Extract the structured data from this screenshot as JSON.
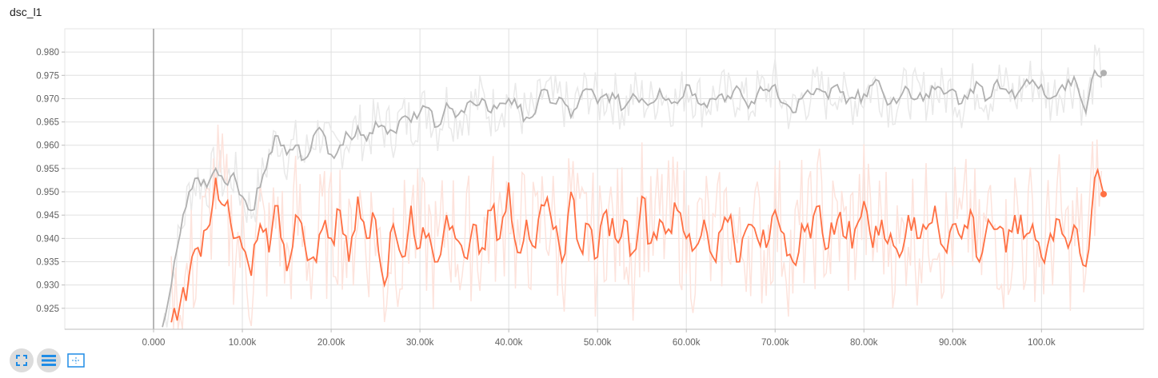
{
  "chart_data": {
    "type": "line",
    "title": "dsc_l1",
    "xlabel": "",
    "ylabel": "",
    "xlim": [
      -10000,
      111500
    ],
    "ylim": [
      0.9205,
      0.985
    ],
    "x_ticks": [
      0,
      10000,
      20000,
      30000,
      40000,
      50000,
      60000,
      70000,
      80000,
      90000,
      100000
    ],
    "x_tick_labels": [
      "0.000",
      "10.00k",
      "20.00k",
      "30.00k",
      "40.00k",
      "50.00k",
      "60.00k",
      "70.00k",
      "80.00k",
      "90.00k",
      "100.0k"
    ],
    "y_ticks": [
      0.925,
      0.93,
      0.935,
      0.94,
      0.945,
      0.95,
      0.955,
      0.96,
      0.965,
      0.97,
      0.975,
      0.98
    ],
    "y_tick_labels": [
      "0.925",
      "0.930",
      "0.935",
      "0.940",
      "0.945",
      "0.950",
      "0.955",
      "0.960",
      "0.965",
      "0.970",
      "0.975",
      "0.980"
    ],
    "grid": true,
    "legend": "none",
    "series": [
      {
        "color": "#b0b0b0",
        "raw_color": "#e9e9e9",
        "x": [
          1000,
          2000,
          3000,
          4000,
          5000,
          6000,
          7000,
          8000,
          9000,
          10000,
          11000,
          12000,
          13000,
          14000,
          15000,
          16000,
          17000,
          18000,
          19000,
          20000,
          21000,
          22000,
          23000,
          24000,
          25000,
          26000,
          27000,
          28000,
          29000,
          30000,
          31000,
          32000,
          33000,
          34000,
          35000,
          36000,
          37000,
          38000,
          39000,
          40000,
          41000,
          42000,
          43000,
          44000,
          45000,
          46000,
          47000,
          48000,
          49000,
          50000,
          51000,
          52000,
          53000,
          54000,
          55000,
          56000,
          57000,
          58000,
          59000,
          60000,
          61000,
          62000,
          63000,
          64000,
          65000,
          66000,
          67000,
          68000,
          69000,
          70000,
          71000,
          72000,
          73000,
          74000,
          75000,
          76000,
          77000,
          78000,
          79000,
          80000,
          81000,
          82000,
          83000,
          84000,
          85000,
          86000,
          87000,
          88000,
          89000,
          90000,
          91000,
          92000,
          93000,
          94000,
          95000,
          96000,
          97000,
          98000,
          99000,
          100000,
          101000,
          102000,
          103000,
          104000,
          105000,
          106000,
          107000
        ],
        "values": [
          0.921,
          0.93,
          0.941,
          0.95,
          0.953,
          0.951,
          0.955,
          0.952,
          0.954,
          0.949,
          0.946,
          0.951,
          0.958,
          0.962,
          0.958,
          0.96,
          0.957,
          0.962,
          0.963,
          0.958,
          0.96,
          0.962,
          0.964,
          0.961,
          0.965,
          0.964,
          0.963,
          0.966,
          0.965,
          0.967,
          0.968,
          0.964,
          0.969,
          0.966,
          0.967,
          0.969,
          0.97,
          0.967,
          0.969,
          0.97,
          0.968,
          0.966,
          0.967,
          0.972,
          0.969,
          0.97,
          0.966,
          0.97,
          0.972,
          0.969,
          0.971,
          0.97,
          0.968,
          0.971,
          0.97,
          0.969,
          0.972,
          0.97,
          0.969,
          0.973,
          0.971,
          0.969,
          0.97,
          0.971,
          0.97,
          0.972,
          0.968,
          0.971,
          0.972,
          0.973,
          0.969,
          0.967,
          0.97,
          0.971,
          0.972,
          0.97,
          0.973,
          0.969,
          0.97,
          0.971,
          0.973,
          0.972,
          0.969,
          0.97,
          0.972,
          0.97,
          0.971,
          0.972,
          0.971,
          0.972,
          0.969,
          0.972,
          0.973,
          0.97,
          0.974,
          0.972,
          0.97,
          0.973,
          0.974,
          0.973,
          0.97,
          0.972,
          0.974,
          0.973,
          0.967,
          0.976,
          0.9755
        ]
      },
      {
        "color": "#ff7043",
        "raw_color": "#fde3dc",
        "x": [
          2000,
          3000,
          4000,
          5000,
          6000,
          7000,
          8000,
          9000,
          10000,
          11000,
          12000,
          13000,
          14000,
          15000,
          16000,
          17000,
          18000,
          19000,
          20000,
          21000,
          22000,
          23000,
          24000,
          25000,
          26000,
          27000,
          28000,
          29000,
          30000,
          31000,
          32000,
          33000,
          34000,
          35000,
          36000,
          37000,
          38000,
          39000,
          40000,
          41000,
          42000,
          43000,
          44000,
          45000,
          46000,
          47000,
          48000,
          49000,
          50000,
          51000,
          52000,
          53000,
          54000,
          55000,
          56000,
          57000,
          58000,
          59000,
          60000,
          61000,
          62000,
          63000,
          64000,
          65000,
          66000,
          67000,
          68000,
          69000,
          70000,
          71000,
          72000,
          73000,
          74000,
          75000,
          76000,
          77000,
          78000,
          79000,
          80000,
          81000,
          82000,
          83000,
          84000,
          85000,
          86000,
          87000,
          88000,
          89000,
          90000,
          91000,
          92000,
          93000,
          94000,
          95000,
          96000,
          97000,
          98000,
          99000,
          100000,
          101000,
          102000,
          103000,
          104000,
          105000,
          106000,
          107000
        ],
        "values": [
          0.922,
          0.926,
          0.932,
          0.938,
          0.942,
          0.953,
          0.947,
          0.94,
          0.938,
          0.932,
          0.943,
          0.937,
          0.947,
          0.933,
          0.945,
          0.939,
          0.936,
          0.942,
          0.94,
          0.946,
          0.935,
          0.949,
          0.94,
          0.944,
          0.93,
          0.943,
          0.936,
          0.947,
          0.938,
          0.941,
          0.935,
          0.945,
          0.94,
          0.936,
          0.943,
          0.938,
          0.946,
          0.94,
          0.952,
          0.937,
          0.944,
          0.938,
          0.947,
          0.942,
          0.935,
          0.95,
          0.938,
          0.943,
          0.936,
          0.946,
          0.94,
          0.944,
          0.937,
          0.949,
          0.939,
          0.944,
          0.942,
          0.946,
          0.94,
          0.938,
          0.944,
          0.936,
          0.942,
          0.945,
          0.935,
          0.943,
          0.94,
          0.938,
          0.946,
          0.941,
          0.935,
          0.943,
          0.94,
          0.947,
          0.938,
          0.944,
          0.94,
          0.942,
          0.948,
          0.938,
          0.944,
          0.941,
          0.936,
          0.945,
          0.94,
          0.942,
          0.947,
          0.938,
          0.943,
          0.94,
          0.946,
          0.935,
          0.944,
          0.942,
          0.937,
          0.945,
          0.94,
          0.943,
          0.936,
          0.941,
          0.944,
          0.938,
          0.942,
          0.934,
          0.953,
          0.9495
        ]
      }
    ]
  },
  "toolbar": {
    "expand_icon": "expand-icon",
    "log_scale_icon": "log-scale-icon",
    "fit_domain_icon": "fit-domain-icon"
  },
  "colors": {
    "accent": "#1f8ce6",
    "grid": "#e0e0e0"
  }
}
